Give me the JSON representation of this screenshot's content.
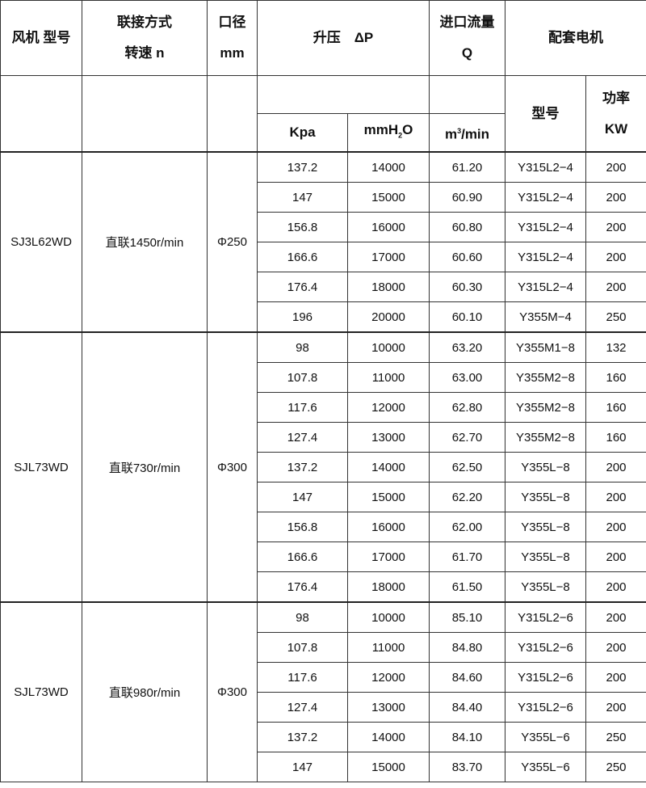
{
  "header": {
    "model": "风机 型号",
    "connection_line1": "联接方式",
    "connection_line2": "转速 n",
    "diameter_line1": "口径",
    "diameter_line2": "mm",
    "pressure": "升压　ΔP",
    "flow_line1": "进口流量",
    "flow_line2": "Q",
    "motor": "配套电机",
    "kpa": "Kpa",
    "mmh2o_pre": "mmH",
    "mmh2o_sub": "2",
    "mmh2o_post": "O",
    "flow_unit_pre": "m",
    "flow_unit_sup": "3",
    "flow_unit_post": "/min",
    "motor_model": "型号",
    "power_line1": "功率",
    "power_line2": "KW"
  },
  "groups": [
    {
      "model": "SJ3L62WD",
      "connection": "直联1450r/min",
      "diameter": "Φ250",
      "rows": [
        [
          "137.2",
          "14000",
          "61.20",
          "Y315L2−4",
          "200"
        ],
        [
          "147",
          "15000",
          "60.90",
          "Y315L2−4",
          "200"
        ],
        [
          "156.8",
          "16000",
          "60.80",
          "Y315L2−4",
          "200"
        ],
        [
          "166.6",
          "17000",
          "60.60",
          "Y315L2−4",
          "200"
        ],
        [
          "176.4",
          "18000",
          "60.30",
          "Y315L2−4",
          "200"
        ],
        [
          "196",
          "20000",
          "60.10",
          "Y355M−4",
          "250"
        ]
      ]
    },
    {
      "model": "SJL73WD",
      "connection": "直联730r/min",
      "diameter": "Φ300",
      "rows": [
        [
          "98",
          "10000",
          "63.20",
          "Y355M1−8",
          "132"
        ],
        [
          "107.8",
          "11000",
          "63.00",
          "Y355M2−8",
          "160"
        ],
        [
          "117.6",
          "12000",
          "62.80",
          "Y355M2−8",
          "160"
        ],
        [
          "127.4",
          "13000",
          "62.70",
          "Y355M2−8",
          "160"
        ],
        [
          "137.2",
          "14000",
          "62.50",
          "Y355L−8",
          "200"
        ],
        [
          "147",
          "15000",
          "62.20",
          "Y355L−8",
          "200"
        ],
        [
          "156.8",
          "16000",
          "62.00",
          "Y355L−8",
          "200"
        ],
        [
          "166.6",
          "17000",
          "61.70",
          "Y355L−8",
          "200"
        ],
        [
          "176.4",
          "18000",
          "61.50",
          "Y355L−8",
          "200"
        ]
      ]
    },
    {
      "model": "SJL73WD",
      "connection": "直联980r/min",
      "diameter": "Φ300",
      "rows": [
        [
          "98",
          "10000",
          "85.10",
          "Y315L2−6",
          "200"
        ],
        [
          "107.8",
          "11000",
          "84.80",
          "Y315L2−6",
          "200"
        ],
        [
          "117.6",
          "12000",
          "84.60",
          "Y315L2−6",
          "200"
        ],
        [
          "127.4",
          "13000",
          "84.40",
          "Y315L2−6",
          "200"
        ],
        [
          "137.2",
          "14000",
          "84.10",
          "Y355L−6",
          "250"
        ],
        [
          "147",
          "15000",
          "83.70",
          "Y355L−6",
          "250"
        ]
      ]
    }
  ]
}
